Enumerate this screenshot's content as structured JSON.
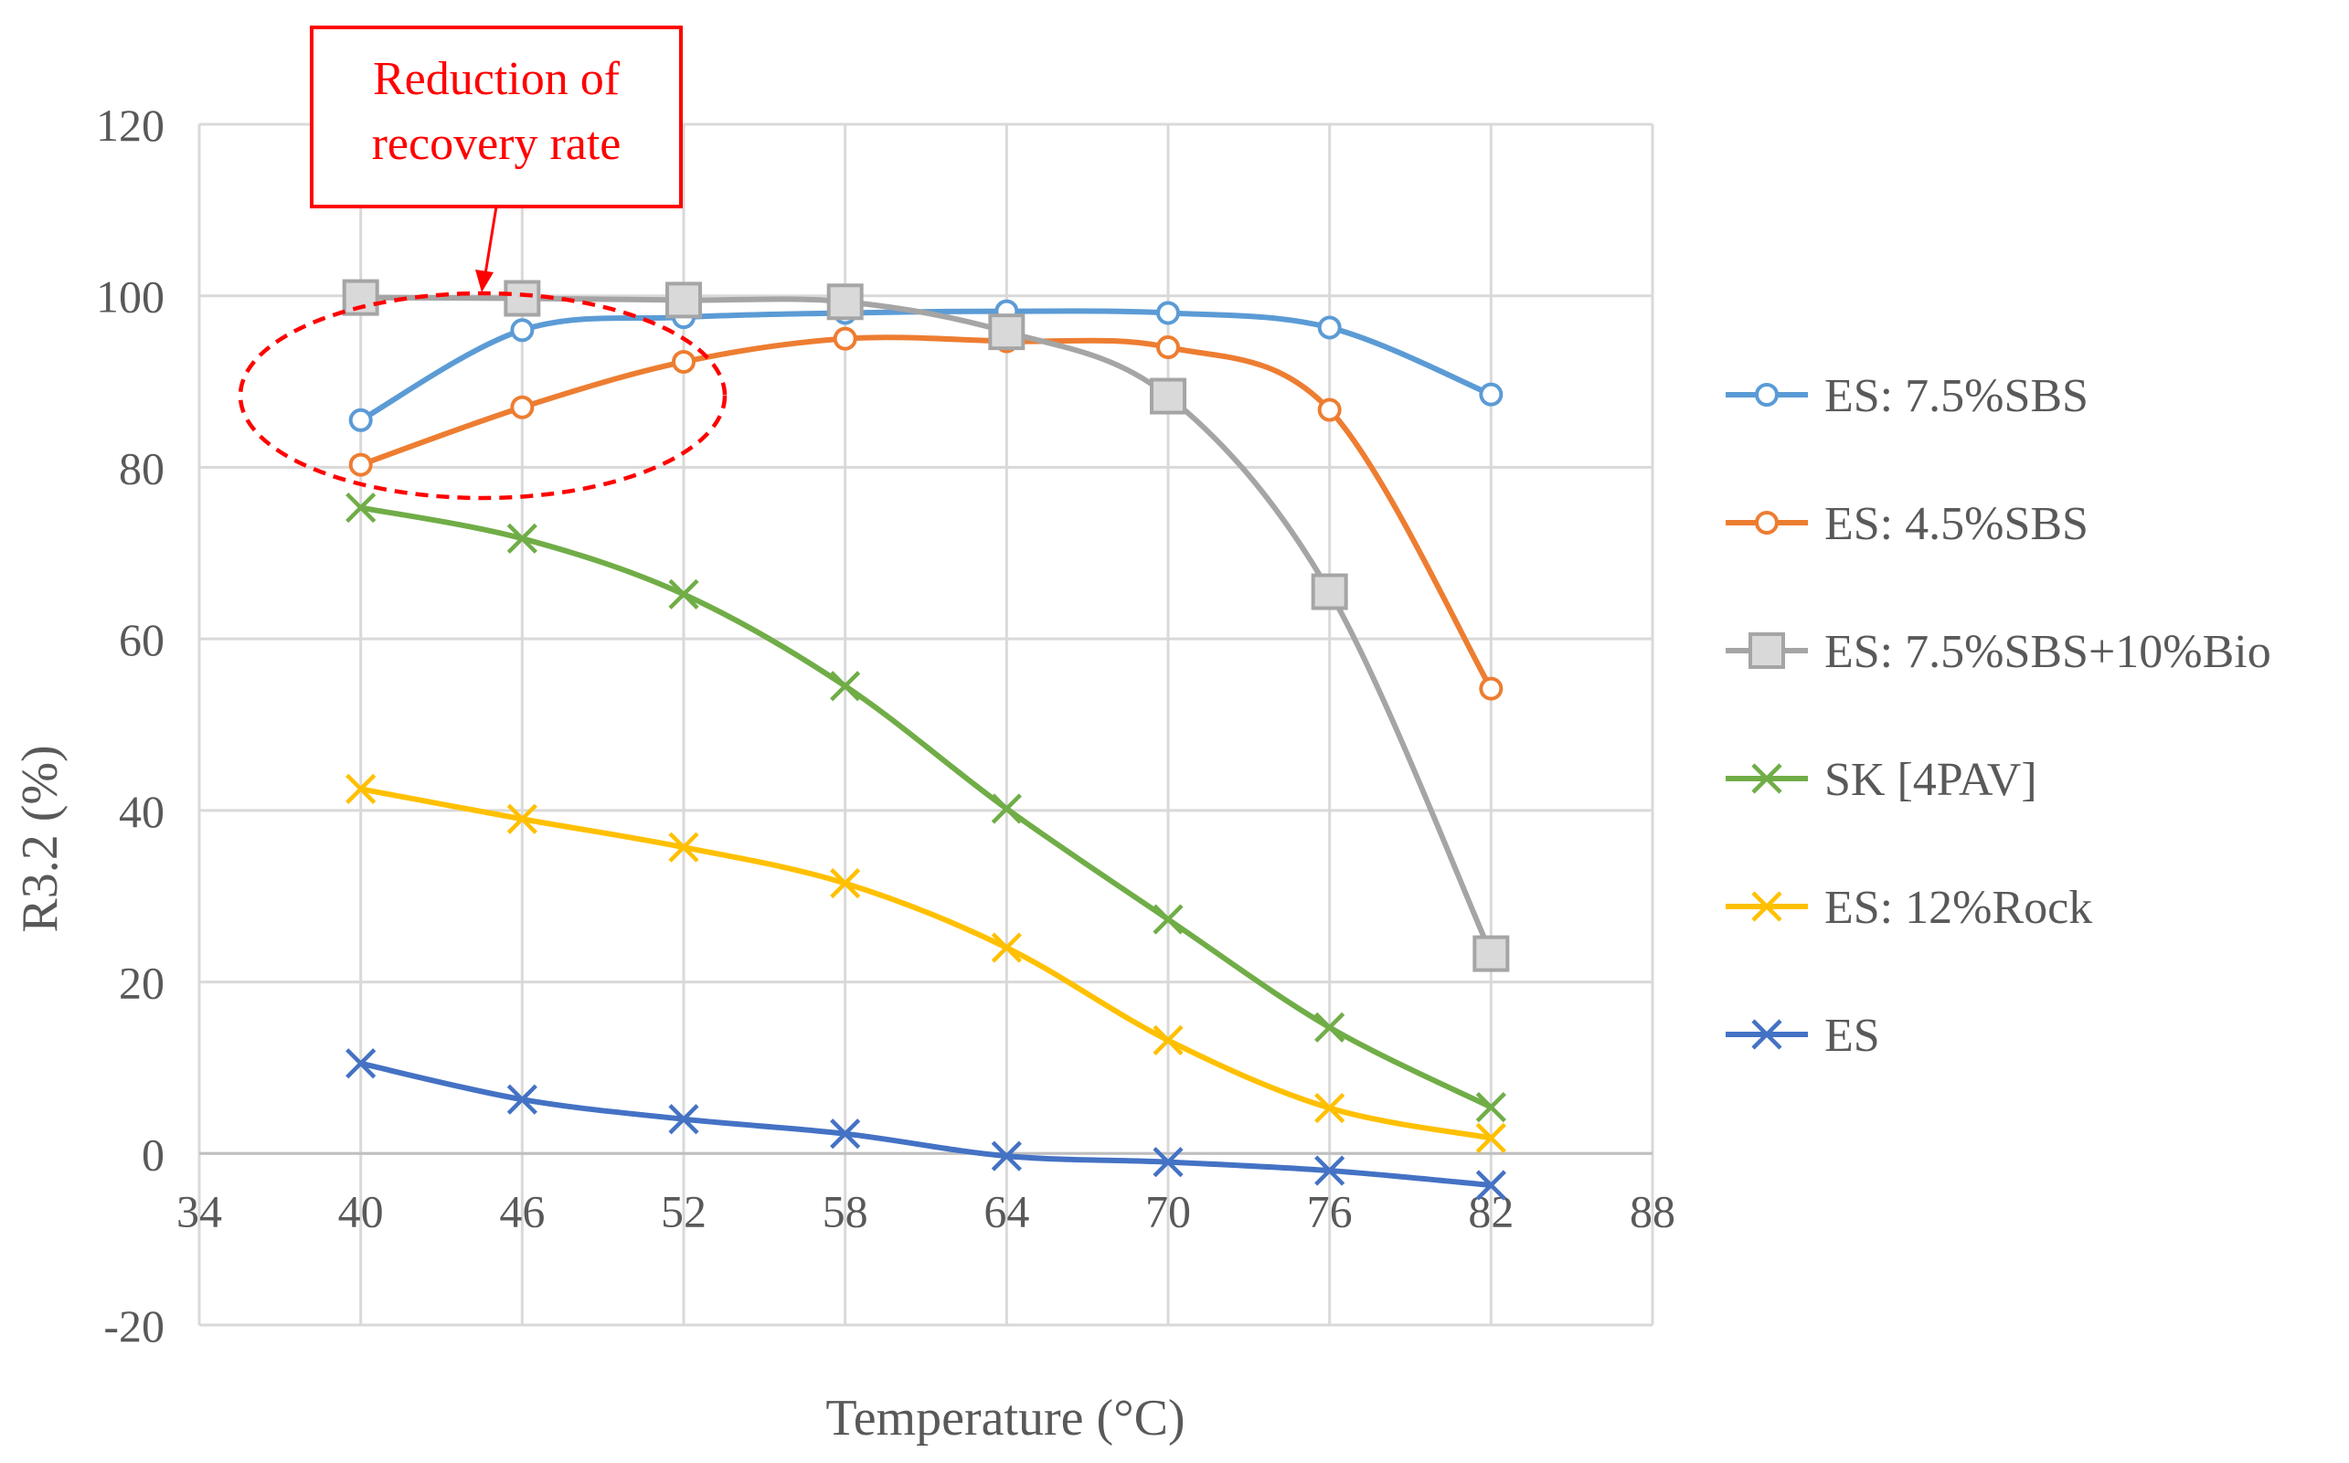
{
  "chart_data": {
    "type": "line",
    "xlabel": "Temperature (°C)",
    "ylabel": "R3.2 (%)",
    "xlim": [
      34,
      88
    ],
    "ylim": [
      -20,
      120
    ],
    "x_ticks": [
      34,
      40,
      46,
      52,
      58,
      64,
      70,
      76,
      82,
      88
    ],
    "y_ticks": [
      -20,
      0,
      20,
      40,
      60,
      80,
      100,
      120
    ],
    "grid": true,
    "legend_position": "right",
    "x": [
      40,
      46,
      52,
      58,
      64,
      70,
      76,
      82
    ],
    "series": [
      {
        "name": "ES: 7.5%SBS",
        "color": "#5b9bd5",
        "marker": "circle",
        "values": [
          85.5,
          96,
          97.5,
          98,
          98.2,
          98,
          96.3,
          88.5
        ]
      },
      {
        "name": "ES: 4.5%SBS",
        "color": "#ed7d31",
        "marker": "circle",
        "values": [
          80.3,
          87,
          92.3,
          95,
          94.7,
          94,
          86.7,
          54.2
        ]
      },
      {
        "name": "ES: 7.5%SBS+10%Bio",
        "color": "#a5a5a5",
        "marker": "square",
        "values": [
          99.8,
          99.7,
          99.5,
          99.3,
          95.8,
          88.3,
          65.5,
          23.3
        ]
      },
      {
        "name": "SK [4PAV]",
        "color": "#70ad47",
        "marker": "x",
        "values": [
          75.3,
          71.7,
          65.2,
          54.5,
          40.2,
          27.3,
          14.7,
          5.4
        ]
      },
      {
        "name": "ES: 12%Rock",
        "color": "#ffc000",
        "marker": "x",
        "values": [
          42.5,
          39,
          35.7,
          31.5,
          24,
          13.2,
          5.3,
          1.8
        ]
      },
      {
        "name": "ES",
        "color": "#4472c4",
        "marker": "x",
        "values": [
          10.5,
          6.3,
          4,
          2.3,
          -0.3,
          -1,
          -2,
          -3.7
        ]
      }
    ],
    "annotation": {
      "text_line1": "Reduction of",
      "text_line2": "recovery rate",
      "color": "#ff0000"
    }
  }
}
